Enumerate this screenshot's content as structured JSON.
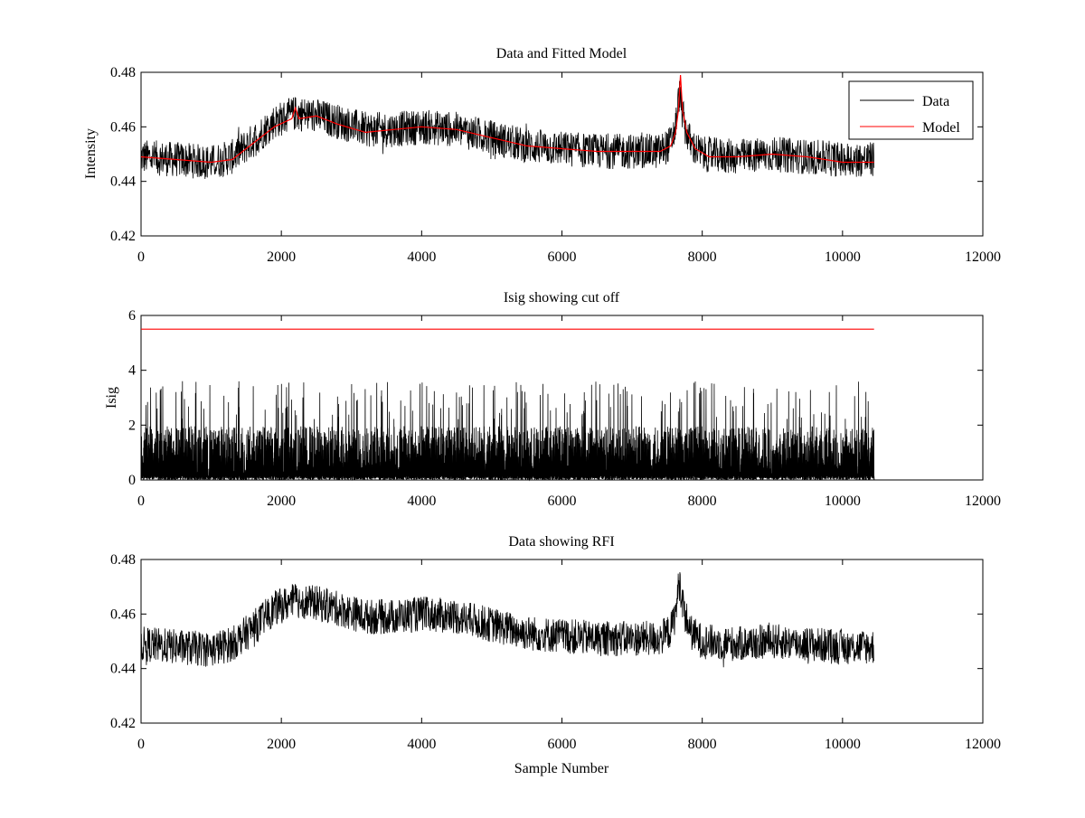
{
  "chart_data": [
    {
      "type": "line",
      "title": "Data and Fitted Model",
      "xlabel": "",
      "ylabel": "Intensity",
      "xlim": [
        0,
        12000
      ],
      "ylim": [
        0.42,
        0.48
      ],
      "xticks": [
        0,
        2000,
        4000,
        6000,
        8000,
        10000,
        12000
      ],
      "yticks": [
        0.42,
        0.44,
        0.46,
        0.48
      ],
      "xtick_labels": [
        "0",
        "2000",
        "4000",
        "6000",
        "8000",
        "10000",
        "12000"
      ],
      "ytick_labels": [
        "0.42",
        "0.44",
        "0.46",
        "0.48"
      ],
      "grid": false,
      "legend": {
        "placement": "top-right",
        "entries": [
          "Data",
          "Model"
        ]
      },
      "series": [
        {
          "name": "Data",
          "color": "#000000",
          "style": "noisy",
          "x_end": 10450,
          "noise_amplitude": 0.0065,
          "envelope": [
            [
              0,
              0.449
            ],
            [
              500,
              0.448
            ],
            [
              1000,
              0.447
            ],
            [
              1300,
              0.449
            ],
            [
              1600,
              0.455
            ],
            [
              1900,
              0.462
            ],
            [
              2200,
              0.465
            ],
            [
              2500,
              0.464
            ],
            [
              2800,
              0.462
            ],
            [
              3200,
              0.459
            ],
            [
              3600,
              0.459
            ],
            [
              4000,
              0.46
            ],
            [
              4500,
              0.459
            ],
            [
              5000,
              0.456
            ],
            [
              5500,
              0.453
            ],
            [
              6000,
              0.452
            ],
            [
              6500,
              0.451
            ],
            [
              7000,
              0.451
            ],
            [
              7400,
              0.451
            ],
            [
              7550,
              0.454
            ],
            [
              7620,
              0.46
            ],
            [
              7670,
              0.472
            ],
            [
              7700,
              0.468
            ],
            [
              7750,
              0.46
            ],
            [
              7850,
              0.453
            ],
            [
              8000,
              0.45
            ],
            [
              8500,
              0.449
            ],
            [
              9000,
              0.45
            ],
            [
              9500,
              0.449
            ],
            [
              10000,
              0.448
            ],
            [
              10450,
              0.448
            ]
          ]
        },
        {
          "name": "Model",
          "color": "#ff0000",
          "style": "line",
          "points": [
            [
              0,
              0.449
            ],
            [
              500,
              0.448
            ],
            [
              1000,
              0.447
            ],
            [
              1300,
              0.448
            ],
            [
              1600,
              0.454
            ],
            [
              1900,
              0.46
            ],
            [
              2150,
              0.463
            ],
            [
              2200,
              0.467
            ],
            [
              2250,
              0.463
            ],
            [
              2500,
              0.464
            ],
            [
              2800,
              0.461
            ],
            [
              3200,
              0.458
            ],
            [
              3600,
              0.459
            ],
            [
              4000,
              0.46
            ],
            [
              4500,
              0.459
            ],
            [
              5000,
              0.456
            ],
            [
              5500,
              0.453
            ],
            [
              6000,
              0.452
            ],
            [
              6500,
              0.451
            ],
            [
              7000,
              0.451
            ],
            [
              7400,
              0.451
            ],
            [
              7550,
              0.453
            ],
            [
              7620,
              0.458
            ],
            [
              7660,
              0.466
            ],
            [
              7690,
              0.479
            ],
            [
              7720,
              0.466
            ],
            [
              7780,
              0.458
            ],
            [
              7900,
              0.452
            ],
            [
              8100,
              0.449
            ],
            [
              8500,
              0.449
            ],
            [
              9000,
              0.45
            ],
            [
              9500,
              0.449
            ],
            [
              10000,
              0.447
            ],
            [
              10450,
              0.447
            ]
          ]
        }
      ]
    },
    {
      "type": "line",
      "title": "Isig showing cut off",
      "xlabel": "",
      "ylabel": "Isig",
      "xlim": [
        0,
        12000
      ],
      "ylim": [
        0,
        6
      ],
      "xticks": [
        0,
        2000,
        4000,
        6000,
        8000,
        10000,
        12000
      ],
      "yticks": [
        0,
        2,
        4,
        6
      ],
      "xtick_labels": [
        "0",
        "2000",
        "4000",
        "6000",
        "8000",
        "10000",
        "12000"
      ],
      "ytick_labels": [
        "0",
        "2",
        "4",
        "6"
      ],
      "grid": false,
      "series": [
        {
          "color": "#000000",
          "style": "spikes",
          "x_end": 10450,
          "dense_level": 1.4,
          "peak_range": [
            2.2,
            3.6
          ]
        },
        {
          "color": "#ff0000",
          "style": "line",
          "points": [
            [
              0,
              5.5
            ],
            [
              10450,
              5.5
            ]
          ]
        }
      ]
    },
    {
      "type": "line",
      "title": "Data showing RFI",
      "xlabel": "Sample Number",
      "ylabel": "",
      "xlim": [
        0,
        12000
      ],
      "ylim": [
        0.42,
        0.48
      ],
      "xticks": [
        0,
        2000,
        4000,
        6000,
        8000,
        10000,
        12000
      ],
      "yticks": [
        0.42,
        0.44,
        0.46,
        0.48
      ],
      "xtick_labels": [
        "0",
        "2000",
        "4000",
        "6000",
        "8000",
        "10000",
        "12000"
      ],
      "ytick_labels": [
        "0.42",
        "0.44",
        "0.46",
        "0.48"
      ],
      "grid": false,
      "series": [
        {
          "color": "#000000",
          "style": "noisy",
          "x_end": 10450,
          "noise_amplitude": 0.0065,
          "envelope": [
            [
              0,
              0.449
            ],
            [
              500,
              0.448
            ],
            [
              1000,
              0.447
            ],
            [
              1300,
              0.449
            ],
            [
              1600,
              0.455
            ],
            [
              1900,
              0.462
            ],
            [
              2200,
              0.465
            ],
            [
              2500,
              0.464
            ],
            [
              2800,
              0.462
            ],
            [
              3200,
              0.459
            ],
            [
              3600,
              0.459
            ],
            [
              4000,
              0.46
            ],
            [
              4500,
              0.459
            ],
            [
              5000,
              0.456
            ],
            [
              5500,
              0.453
            ],
            [
              6000,
              0.452
            ],
            [
              6500,
              0.451
            ],
            [
              7000,
              0.451
            ],
            [
              7400,
              0.451
            ],
            [
              7550,
              0.454
            ],
            [
              7620,
              0.46
            ],
            [
              7670,
              0.472
            ],
            [
              7700,
              0.468
            ],
            [
              7750,
              0.46
            ],
            [
              7850,
              0.453
            ],
            [
              8000,
              0.45
            ],
            [
              8500,
              0.449
            ],
            [
              9000,
              0.45
            ],
            [
              9500,
              0.449
            ],
            [
              10000,
              0.448
            ],
            [
              10450,
              0.448
            ]
          ]
        }
      ]
    }
  ]
}
